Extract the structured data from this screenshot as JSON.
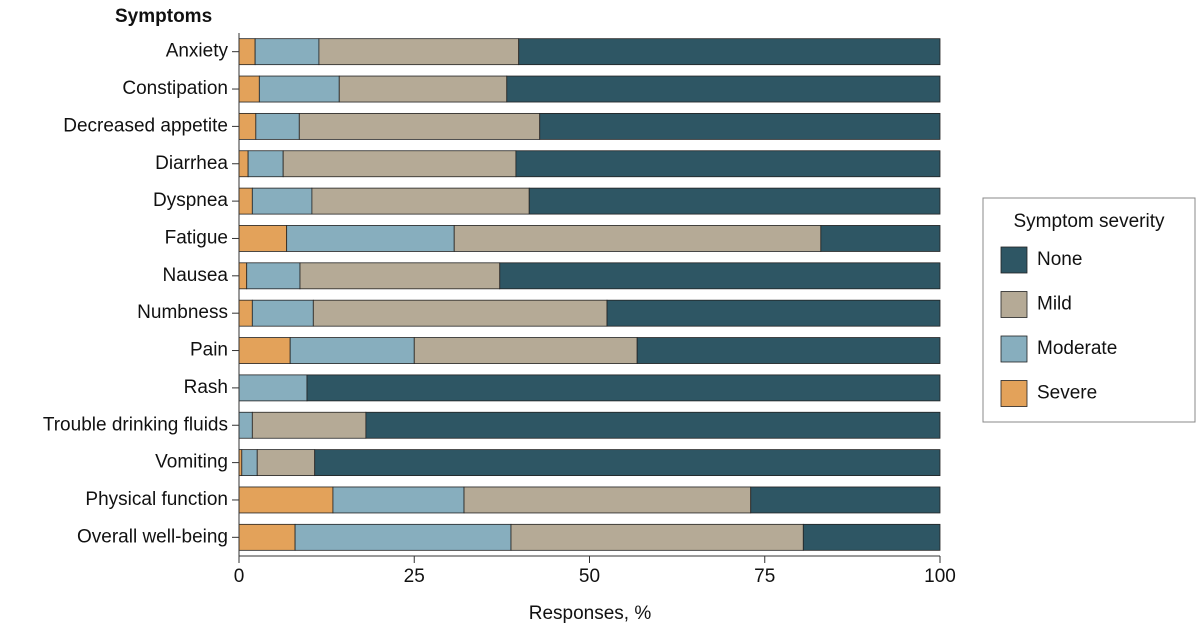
{
  "chart_data": {
    "type": "stacked_bar_horizontal",
    "y_label": "Symptoms",
    "x_label": "Responses, %",
    "legend_title": "Symptom severity",
    "legend_position": "right",
    "categories": [
      "Anxiety",
      "Constipation",
      "Decreased appetite",
      "Diarrhea",
      "Dyspnea",
      "Fatigue",
      "Nausea",
      "Numbness",
      "Pain",
      "Rash",
      "Trouble drinking fluids",
      "Vomiting",
      "Physical function",
      "Overall well-being"
    ],
    "series": [
      {
        "name": "None",
        "color": "#2e5664",
        "values": [
          60.1,
          61.8,
          57.1,
          60.5,
          58.6,
          17.0,
          62.8,
          47.5,
          43.2,
          90.3,
          81.9,
          89.2,
          27.0,
          19.5
        ]
      },
      {
        "name": "Mild",
        "color": "#b5aa96",
        "values": [
          28.5,
          23.9,
          34.3,
          33.2,
          31.0,
          52.3,
          28.5,
          41.9,
          31.8,
          0,
          16.2,
          8.2,
          40.9,
          41.7
        ]
      },
      {
        "name": "Moderate",
        "color": "#87aebe",
        "values": [
          9.1,
          11.4,
          6.2,
          5.0,
          8.5,
          23.9,
          7.6,
          8.7,
          17.7,
          9.7,
          1.9,
          2.2,
          18.7,
          30.8
        ]
      },
      {
        "name": "Severe",
        "color": "#e3a25a",
        "values": [
          2.3,
          2.9,
          2.4,
          1.3,
          1.9,
          6.8,
          1.1,
          1.9,
          7.3,
          0,
          0,
          0.4,
          13.4,
          8.0
        ]
      }
    ],
    "xlim": [
      0,
      100
    ],
    "xticks": [
      0,
      25,
      50,
      75,
      100
    ]
  }
}
